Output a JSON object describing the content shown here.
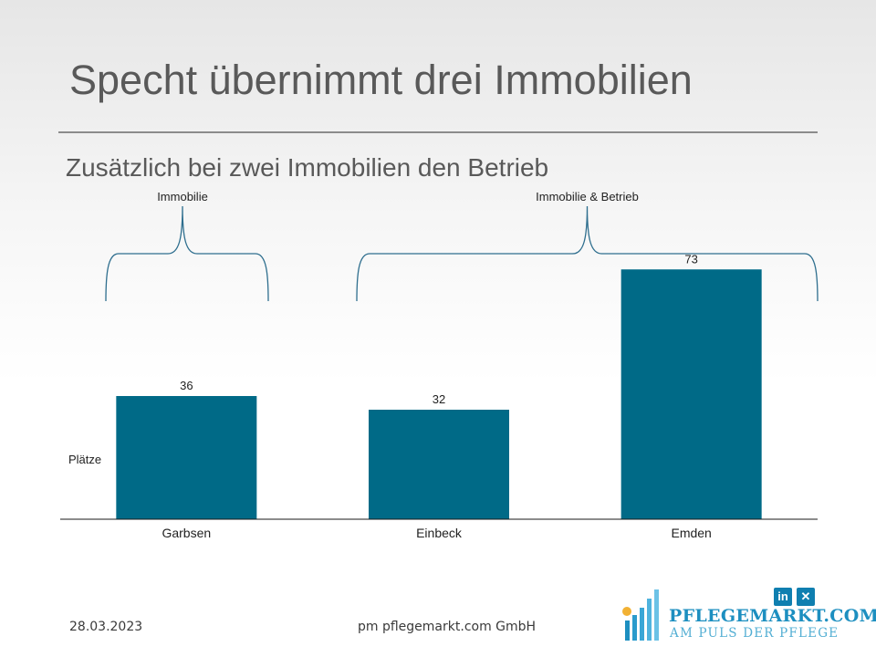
{
  "slide": {
    "title": "Specht übernimmt drei Immobilien",
    "subtitle": "Zusätzlich bei zwei Immobilien den Betrieb"
  },
  "chart_data": {
    "type": "bar",
    "categories": [
      "Garbsen",
      "Einbeck",
      "Emden"
    ],
    "values": [
      36,
      32,
      73
    ],
    "ylabel": "Plätze",
    "ylim": [
      0,
      80
    ],
    "bar_color": "#006a87",
    "grid": false,
    "data_labels": true,
    "groups": [
      {
        "label": "Immobilie",
        "categories": [
          "Garbsen"
        ]
      },
      {
        "label": "Immobilie & Betrieb",
        "categories": [
          "Einbeck",
          "Emden"
        ]
      }
    ]
  },
  "footer": {
    "date": "28.03.2023",
    "company": "pm pflegemarkt.com GmbH"
  },
  "branding": {
    "logo_text": "PFLEGEMARKT.COM",
    "tagline": "AM PULS DER PFLEGE",
    "social_icons": [
      "linkedin-icon",
      "xing-icon"
    ],
    "accent_color": "#1d8fc0"
  }
}
